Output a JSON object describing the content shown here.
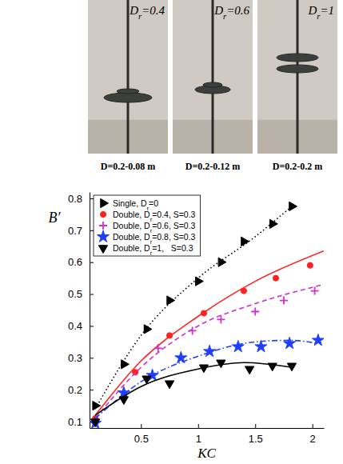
{
  "photos": [
    {
      "label": "Dr=0.4",
      "caption": "D=0.2-0.08 m"
    },
    {
      "label": "Dr=0.6",
      "caption": "D=0.2-0.12 m"
    },
    {
      "label": "Dr=1",
      "caption": "D=0.2-0.2 m"
    }
  ],
  "chart_data": {
    "type": "scatter",
    "x_label": "KC",
    "y_label": "B′",
    "xlim": [
      0.05,
      2.1
    ],
    "xticks": [
      0.5,
      1,
      1.5,
      2
    ],
    "ylim": [
      0.08,
      0.82
    ],
    "yticks": [
      0.1,
      0.2,
      0.3,
      0.4,
      0.5,
      0.6,
      0.7,
      0.8
    ],
    "grid": false,
    "legend": "upper left",
    "series": [
      {
        "name": "Single, Dr=0",
        "color": "#000000",
        "marker": "triangle-right",
        "line_style": "dotted",
        "x": [
          0.1,
          0.35,
          0.55,
          0.75,
          1.0,
          1.2,
          1.4,
          1.65,
          1.82
        ],
        "values": [
          0.15,
          0.28,
          0.39,
          0.48,
          0.54,
          0.6,
          0.665,
          0.72,
          0.775
        ],
        "fit_x": [
          0.1,
          0.5,
          1.0,
          1.5,
          1.82
        ],
        "fit_values": [
          0.14,
          0.37,
          0.55,
          0.68,
          0.775
        ]
      },
      {
        "name": "Double, Dr=0.4, S=0.3",
        "color": "#ff2020",
        "marker": "circle",
        "line_style": "solid",
        "x": [
          0.1,
          0.45,
          0.75,
          1.05,
          1.4,
          1.68,
          1.98
        ],
        "values": [
          0.11,
          0.255,
          0.37,
          0.44,
          0.51,
          0.55,
          0.59
        ],
        "fit_x": [
          0.1,
          0.5,
          1.0,
          1.5,
          2.1
        ],
        "fit_values": [
          0.12,
          0.29,
          0.43,
          0.54,
          0.635
        ]
      },
      {
        "name": "Double, Dr=0.6, S=0.3",
        "color": "#cc33cc",
        "marker": "plus",
        "line_style": "dashed",
        "x": [
          0.1,
          0.65,
          0.95,
          1.2,
          1.5,
          1.75,
          2.02
        ],
        "values": [
          0.1,
          0.33,
          0.385,
          0.42,
          0.445,
          0.48,
          0.51
        ],
        "fit_x": [
          0.1,
          0.5,
          1.0,
          1.5,
          2.1
        ],
        "fit_values": [
          0.11,
          0.27,
          0.4,
          0.47,
          0.53
        ]
      },
      {
        "name": "Double, Dr=0.8, S=0.3",
        "color": "#1f3fff",
        "marker": "star",
        "line_style": "dashdot",
        "x": [
          0.1,
          0.35,
          0.6,
          0.85,
          1.1,
          1.35,
          1.55,
          1.8,
          2.05
        ],
        "values": [
          0.095,
          0.19,
          0.245,
          0.3,
          0.32,
          0.335,
          0.335,
          0.345,
          0.355
        ],
        "fit_x": [
          0.1,
          0.5,
          1.0,
          1.5,
          1.8,
          2.05
        ],
        "fit_values": [
          0.11,
          0.225,
          0.305,
          0.35,
          0.355,
          0.345
        ]
      },
      {
        "name": "Double, Dr=1,   S=0.3",
        "color": "#000000",
        "marker": "triangle-down",
        "line_style": "solid",
        "x": [
          0.1,
          0.35,
          0.55,
          0.75,
          1.05,
          1.2,
          1.45,
          1.65,
          1.82
        ],
        "values": [
          0.1,
          0.17,
          0.235,
          0.22,
          0.27,
          0.285,
          0.265,
          0.275,
          0.275
        ],
        "fit_x": [
          0.1,
          0.5,
          1.0,
          1.4,
          1.82
        ],
        "fit_values": [
          0.12,
          0.21,
          0.265,
          0.285,
          0.27
        ]
      }
    ]
  }
}
